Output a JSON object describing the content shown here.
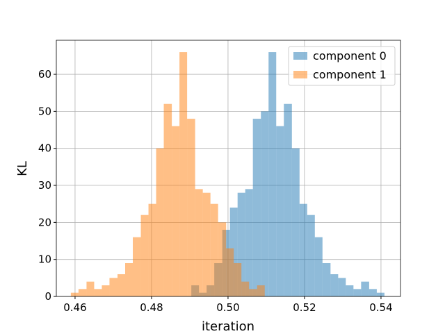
{
  "chart_data": {
    "type": "histogram",
    "x_label": "iteration",
    "y_label": "KL",
    "xlim": [
      0.4551,
      0.5451
    ],
    "ylim": [
      0,
      69.2
    ],
    "xticks": [
      0.46,
      0.48,
      {
        "value": 0.5,
        "label": "0.50"
      },
      0.52,
      0.54
    ],
    "yticks": [
      0,
      10,
      20,
      30,
      40,
      50,
      60
    ],
    "grid": true,
    "legend": "upper right",
    "opacity": 0.5,
    "series": [
      {
        "name": "component 0",
        "color": "#1f77b4",
        "bins": [
          0.4904,
          0.4924,
          0.4944,
          0.4964,
          0.4985,
          0.5005,
          0.5025,
          0.5045,
          0.5065,
          0.5086,
          0.5106,
          0.5126,
          0.5146,
          0.5167,
          0.5187,
          0.5207,
          0.5227,
          0.5247,
          0.5268,
          0.5288,
          0.5308,
          0.5328,
          0.5348,
          0.5369,
          0.5389,
          0.5409
        ],
        "values": [
          3,
          1,
          3,
          9,
          18,
          24,
          28,
          29,
          48,
          50,
          66,
          46,
          52,
          40,
          25,
          22,
          16,
          9,
          6,
          5,
          3,
          2,
          4,
          2,
          1
        ]
      },
      {
        "name": "component 1",
        "color": "#ff7f0e",
        "bins": [
          0.4589,
          0.4609,
          0.463,
          0.465,
          0.467,
          0.469,
          0.4711,
          0.4731,
          0.4751,
          0.4772,
          0.4792,
          0.4812,
          0.4832,
          0.4853,
          0.4873,
          0.4893,
          0.4914,
          0.4934,
          0.4954,
          0.4974,
          0.4995,
          0.5015,
          0.5035,
          0.5055,
          0.5076,
          0.5096
        ],
        "values": [
          1,
          2,
          4,
          2,
          3,
          5,
          6,
          9,
          16,
          22,
          25,
          40,
          52,
          46,
          66,
          48,
          29,
          28,
          25,
          20,
          13,
          9,
          4,
          2,
          3
        ]
      }
    ]
  }
}
